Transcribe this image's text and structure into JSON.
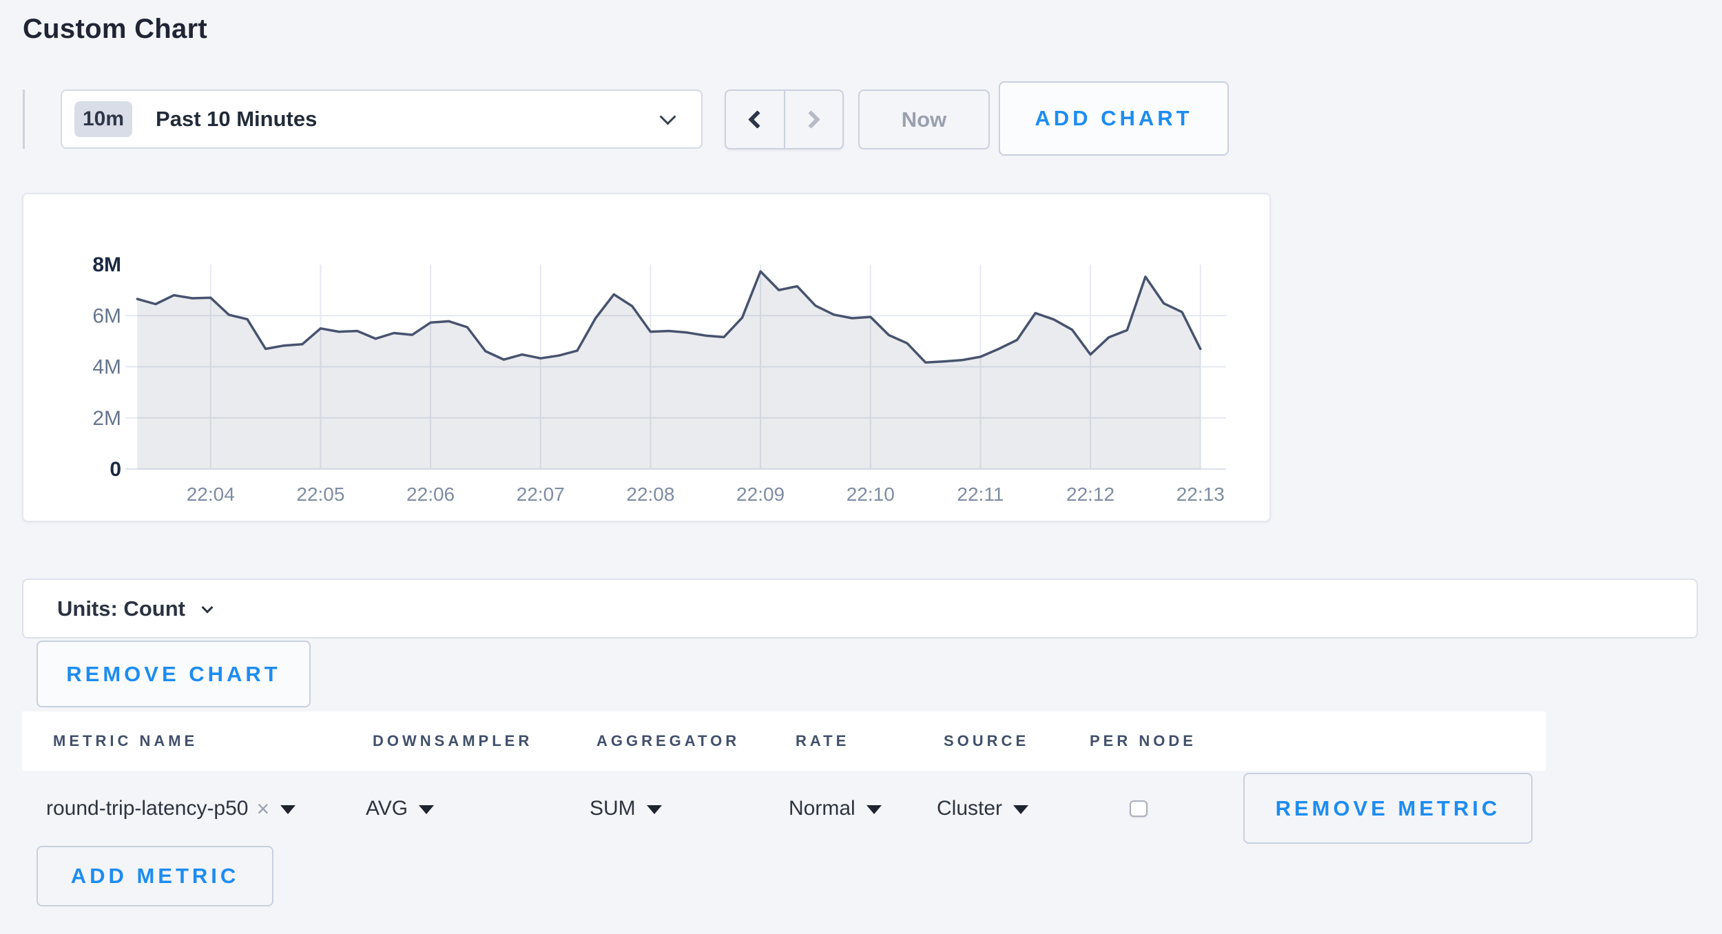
{
  "page": {
    "title": "Custom Chart",
    "background": "#f4f5f9",
    "accent_blue": "#1d8cf1"
  },
  "toolbar": {
    "time_scale_badge": "10m",
    "time_scale_label": "Past 10 Minutes",
    "now_label": "Now",
    "add_chart_label": "ADD CHART"
  },
  "chart_data": {
    "type": "area",
    "title": "",
    "xlabel": "",
    "ylabel": "",
    "legend": false,
    "grid": true,
    "line_color": "#47536e",
    "fill_color": "rgba(71,87,115,0.12)",
    "grid_color": "#e6e9f1",
    "baseline_color": "#dce1ec",
    "y_axis": {
      "max_millions": 8,
      "tick_values_millions": [
        0,
        2,
        4,
        6,
        8
      ],
      "tick_labels": [
        "0",
        "2M",
        "4M",
        "6M",
        "8M"
      ],
      "emphasized_values": [
        0,
        8
      ],
      "emph_color": "#1b2942",
      "normal_color": "#66758f"
    },
    "x_axis": {
      "tick_labels": [
        "22:04",
        "22:05",
        "22:06",
        "22:07",
        "22:08",
        "22:09",
        "22:10",
        "22:11",
        "22:12",
        "22:13"
      ],
      "label_color": "#7e8ca3",
      "domain_seconds": 596,
      "first_tick_offset_seconds": 42,
      "tick_step_seconds": 60
    },
    "series": [
      {
        "name": "round-trip-latency-p50",
        "start_offset_seconds": 2,
        "interval_seconds": 10,
        "values_millions": [
          6.65,
          6.45,
          6.8,
          6.68,
          6.7,
          6.03,
          5.86,
          4.7,
          4.83,
          4.88,
          5.5,
          5.37,
          5.4,
          5.1,
          5.32,
          5.25,
          5.73,
          5.78,
          5.55,
          4.61,
          4.28,
          4.48,
          4.33,
          4.44,
          4.63,
          5.9,
          6.83,
          6.37,
          5.37,
          5.4,
          5.34,
          5.22,
          5.16,
          5.92,
          7.73,
          7.0,
          7.15,
          6.39,
          6.04,
          5.9,
          5.95,
          5.24,
          4.92,
          4.17,
          4.21,
          4.26,
          4.39,
          4.7,
          5.05,
          6.1,
          5.85,
          5.45,
          4.48,
          5.15,
          5.43,
          7.52,
          6.48,
          6.14,
          4.7
        ]
      }
    ]
  },
  "units_bar": {
    "label": "Units: Count"
  },
  "chart_actions": {
    "remove_chart_label": "REMOVE CHART"
  },
  "metrics_table": {
    "headers": [
      "METRIC NAME",
      "DOWNSAMPLER",
      "AGGREGATOR",
      "RATE",
      "SOURCE",
      "PER NODE"
    ],
    "row": {
      "metric_name": "round-trip-latency-p50",
      "clear_icon": "×",
      "downsampler": "AVG",
      "aggregator": "SUM",
      "rate": "Normal",
      "source": "Cluster",
      "per_node_checked": false
    },
    "remove_metric_label": "REMOVE METRIC",
    "add_metric_label": "ADD METRIC"
  }
}
